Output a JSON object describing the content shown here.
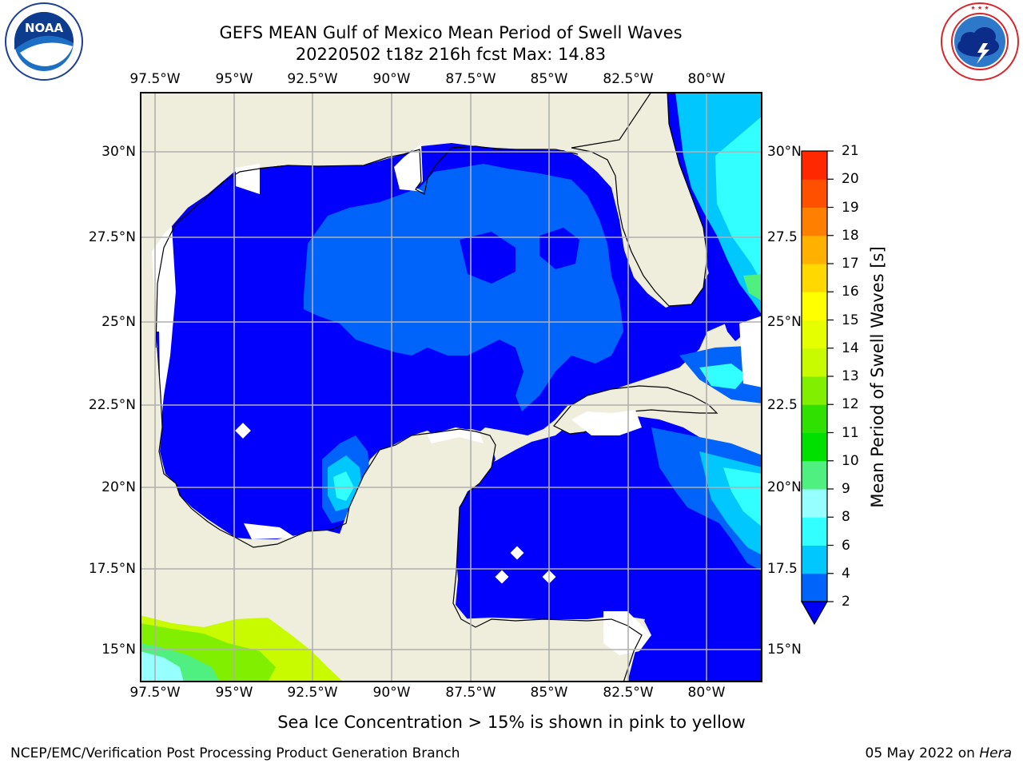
{
  "header": {
    "title": "GEFS MEAN Gulf of Mexico Mean Period of Swell Waves",
    "subtitle": "20220502 t18z 216h fcst   Max: 14.83"
  },
  "logos": {
    "noaa": {
      "text": "NOAA",
      "ring_text": "NATIONAL OCEANIC AND ATMOSPHERIC ADMINISTRATION · U.S. DEPARTMENT OF COMMERCE"
    },
    "nws": {
      "ring_text": "NATIONAL WEATHER SERVICE"
    }
  },
  "map": {
    "lon_labels": [
      "97.5°W",
      "95°W",
      "92.5°W",
      "90°W",
      "87.5°W",
      "85°W",
      "82.5°W",
      "80°W"
    ],
    "lat_labels_left": [
      "30°N",
      "27.5°N",
      "25°N",
      "22.5°N",
      "20°N",
      "17.5°N",
      "15°N"
    ],
    "lat_labels_right": [
      "30°N",
      "27.5",
      "25°N",
      "22.5",
      "20°N",
      "17.5",
      "15°N"
    ],
    "land_color": "#efeddc",
    "ocean_color": "#0000fc",
    "grid_color": "#b0b0b0"
  },
  "colorbar": {
    "label": "Mean Period of Swell Waves [s]",
    "ticks": [
      "2",
      "4",
      "6",
      "8",
      "9",
      "10",
      "11",
      "12",
      "13",
      "14",
      "15",
      "16",
      "17",
      "18",
      "19",
      "20",
      "21"
    ],
    "colors": [
      "#0064fa",
      "#00c8ff",
      "#32ffff",
      "#96ffff",
      "#50f080",
      "#00e000",
      "#30e000",
      "#80f000",
      "#c8fa00",
      "#e6ff00",
      "#ffff00",
      "#ffd800",
      "#ffb000",
      "#ff8000",
      "#ff5000",
      "#ff2800",
      "#ff0000"
    ],
    "extend_color": "#0000fa"
  },
  "notes": {
    "sea_ice": "Sea Ice Concentration > 15% is shown in pink to yellow"
  },
  "footer": {
    "left": "NCEP/EMC/Verification Post Processing Product Generation Branch",
    "right_date": "05 May 2022 on ",
    "right_host": "Hera"
  }
}
